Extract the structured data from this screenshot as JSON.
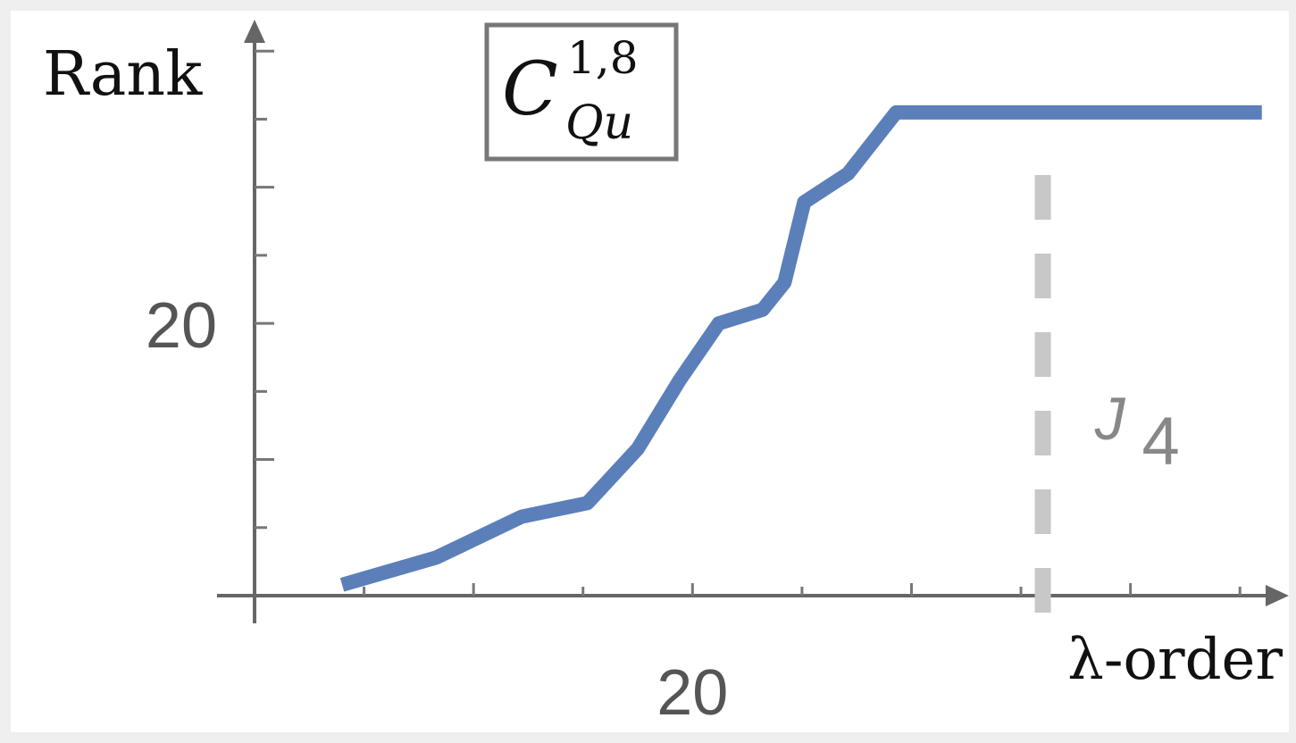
{
  "chart_data": {
    "type": "line",
    "ylabel": "Rank",
    "xlabel": "λ-order",
    "title_box": {
      "base": "C",
      "superscript": "1,8",
      "subscript": "Qu"
    },
    "x_ticks": [
      {
        "value": 20,
        "label": "20"
      }
    ],
    "y_ticks": [
      {
        "value": 20,
        "label": "20"
      }
    ],
    "xlim": [
      0,
      46.5
    ],
    "ylim": [
      0,
      41
    ],
    "series": [
      {
        "color": "#5b7fb9",
        "x": [
          4,
          8.3,
          12.2,
          15.2,
          17.5,
          19.4,
          21.2,
          23.2,
          24.2,
          25.1,
          27.1,
          29.3,
          46
        ],
        "y": [
          0.8,
          2.8,
          5.8,
          6.8,
          10.8,
          15.8,
          20.0,
          21.0,
          23.0,
          28.9,
          31.0,
          35.5,
          35.5
        ]
      }
    ],
    "reference_line": {
      "x": 36,
      "label_base": "J",
      "label_sub": "4",
      "color": "#c8c8c8"
    },
    "grid": false
  }
}
